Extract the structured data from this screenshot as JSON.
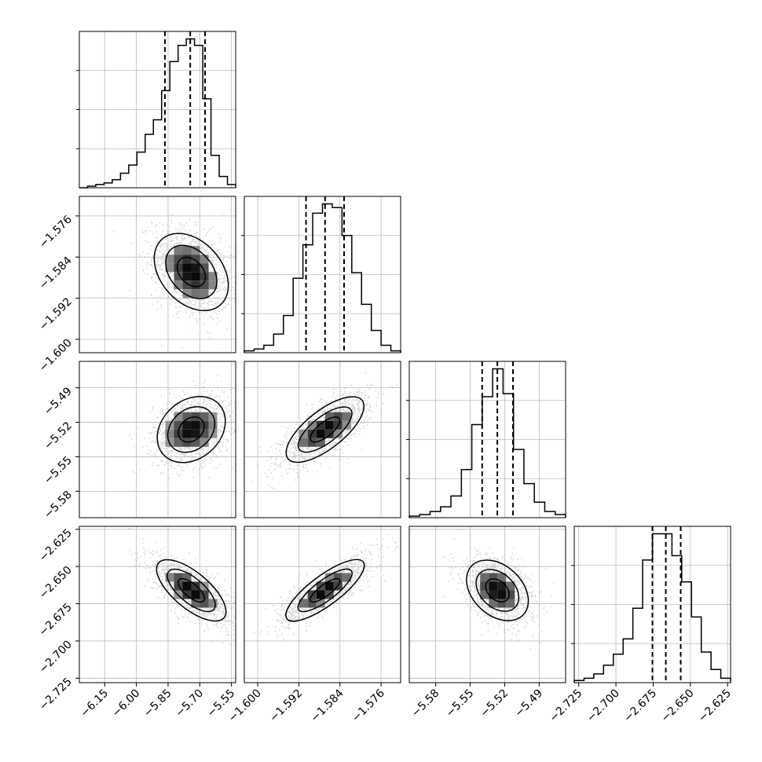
{
  "chart_data": {
    "type": "corner",
    "n_params": 4,
    "parameters": [
      {
        "range": [
          -6.27,
          -5.53
        ],
        "ticks": [
          -6.15,
          -6.0,
          -5.85,
          -5.7,
          -5.55
        ],
        "tick_labels": [
          "−6.15",
          "−6.00",
          "−5.85",
          "−5.70",
          "−5.55"
        ],
        "quantiles": [
          -5.865,
          -5.745,
          -5.675
        ],
        "mean": -5.74,
        "sd": 0.08
      },
      {
        "range": [
          -1.6026,
          -1.5722
        ],
        "ticks": [
          -1.6,
          -1.592,
          -1.584,
          -1.576
        ],
        "tick_labels": [
          "−1.600",
          "−1.592",
          "−1.584",
          "−1.576"
        ],
        "quantiles": [
          -1.5906,
          -1.5869,
          -1.5832
        ],
        "mean": -1.5869,
        "sd": 0.0037
      },
      {
        "range": [
          -5.603,
          -5.467
        ],
        "ticks": [
          -5.58,
          -5.55,
          -5.52,
          -5.49
        ],
        "tick_labels": [
          "−5.58",
          "−5.55",
          "−5.52",
          "−5.49"
        ],
        "quantiles": [
          -5.5396,
          -5.5264,
          -5.5128
        ],
        "mean": -5.5263,
        "sd": 0.013
      },
      {
        "range": [
          -2.728,
          -2.623
        ],
        "ticks": [
          -2.725,
          -2.7,
          -2.675,
          -2.65,
          -2.625
        ],
        "tick_labels": [
          "−2.725",
          "−2.700",
          "−2.675",
          "−2.650",
          "−2.625"
        ],
        "quantiles": [
          -2.6755,
          -2.6665,
          -2.6565
        ],
        "mean": -2.666,
        "sd": 0.0095
      }
    ],
    "histograms": [
      {
        "param": 0,
        "counts": [
          0,
          1,
          2,
          3,
          5,
          9,
          14,
          22,
          33,
          42,
          60,
          78,
          88,
          92,
          88,
          55,
          20,
          7,
          2
        ]
      },
      {
        "param": 1,
        "counts": [
          1,
          2,
          4,
          10,
          20,
          40,
          58,
          75,
          80,
          78,
          63,
          43,
          26,
          12,
          4,
          1
        ]
      },
      {
        "param": 2,
        "counts": [
          1,
          2,
          4,
          7,
          14,
          31,
          60,
          78,
          96,
          80,
          44,
          22,
          10,
          4,
          2
        ]
      },
      {
        "param": 3,
        "counts": [
          1,
          2,
          4,
          8,
          13,
          20,
          34,
          56,
          68,
          68,
          58,
          46,
          30,
          14,
          6,
          2
        ]
      }
    ],
    "pairs": [
      {
        "x": 0,
        "y": 1,
        "rho": -0.35
      },
      {
        "x": 0,
        "y": 2,
        "rho": 0.25
      },
      {
        "x": 1,
        "y": 2,
        "rho": 0.72
      },
      {
        "x": 0,
        "y": 3,
        "rho": -0.7
      },
      {
        "x": 1,
        "y": 3,
        "rho": 0.82
      },
      {
        "x": 2,
        "y": 3,
        "rho": -0.35
      }
    ],
    "quantile_levels": [
      0.16,
      0.5,
      0.84
    ],
    "grid": true,
    "colors": {
      "axes": "#000000",
      "grid": "#bcbcbc",
      "points": "#8c8c8c",
      "contour": "#000000"
    }
  }
}
